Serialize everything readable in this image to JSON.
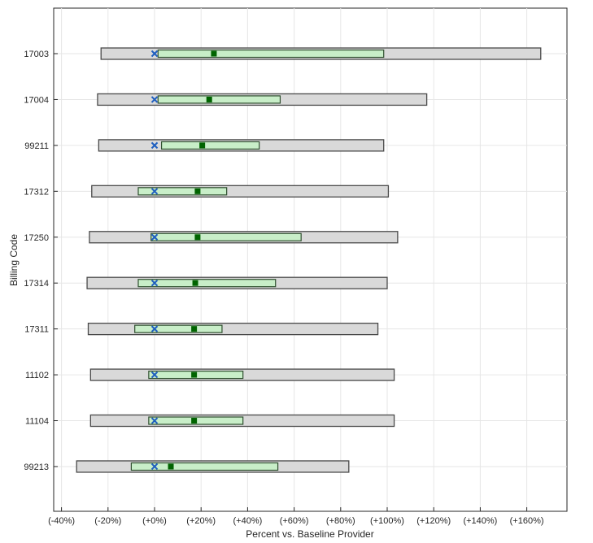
{
  "chart_data": {
    "type": "range-bar",
    "xlabel": "Percent vs. Baseline Provider",
    "ylabel": "Billing Code",
    "xlim": [
      -45,
      172
    ],
    "xticks": [
      -40,
      -20,
      0,
      20,
      40,
      60,
      80,
      100,
      120,
      140,
      160
    ],
    "xtick_labels": [
      "(-40%)",
      "(-20%)",
      "(+0%)",
      "(+20%)",
      "(+40%)",
      "(+60%)",
      "(+80%)",
      "(+100%)",
      "(+120%)",
      "(+140%)",
      "(+160%)"
    ],
    "grid": true,
    "legend": "none",
    "categories": [
      "17003",
      "17004",
      "99211",
      "17312",
      "17250",
      "17314",
      "17311",
      "11102",
      "11104",
      "99213"
    ],
    "series": [
      {
        "role": "outer-range",
        "color": "#d9d9d9",
        "low": [
          -23,
          -24.5,
          -24,
          -27,
          -28,
          -29,
          -28.5,
          -27.5,
          -27.5,
          -33.5
        ],
        "high": [
          166,
          117,
          98.5,
          100.5,
          104.5,
          100,
          96,
          103,
          103,
          83.5
        ]
      },
      {
        "role": "inner-range",
        "color": "#c8eec8",
        "low": [
          1.5,
          1.5,
          3,
          -7,
          -1.5,
          -7,
          -8.5,
          -2.5,
          -2.5,
          -10
        ],
        "high": [
          98.5,
          54,
          45,
          31,
          63,
          52,
          29,
          38,
          38,
          53
        ]
      },
      {
        "role": "median",
        "color": "#006400",
        "values": [
          25.5,
          23.5,
          20.5,
          18.5,
          18.5,
          17.5,
          17,
          17,
          17,
          7
        ]
      },
      {
        "role": "baseline",
        "color": "#1f5fbf",
        "values": [
          0,
          0,
          0,
          0,
          0,
          0,
          0,
          0,
          0,
          0
        ]
      }
    ]
  }
}
